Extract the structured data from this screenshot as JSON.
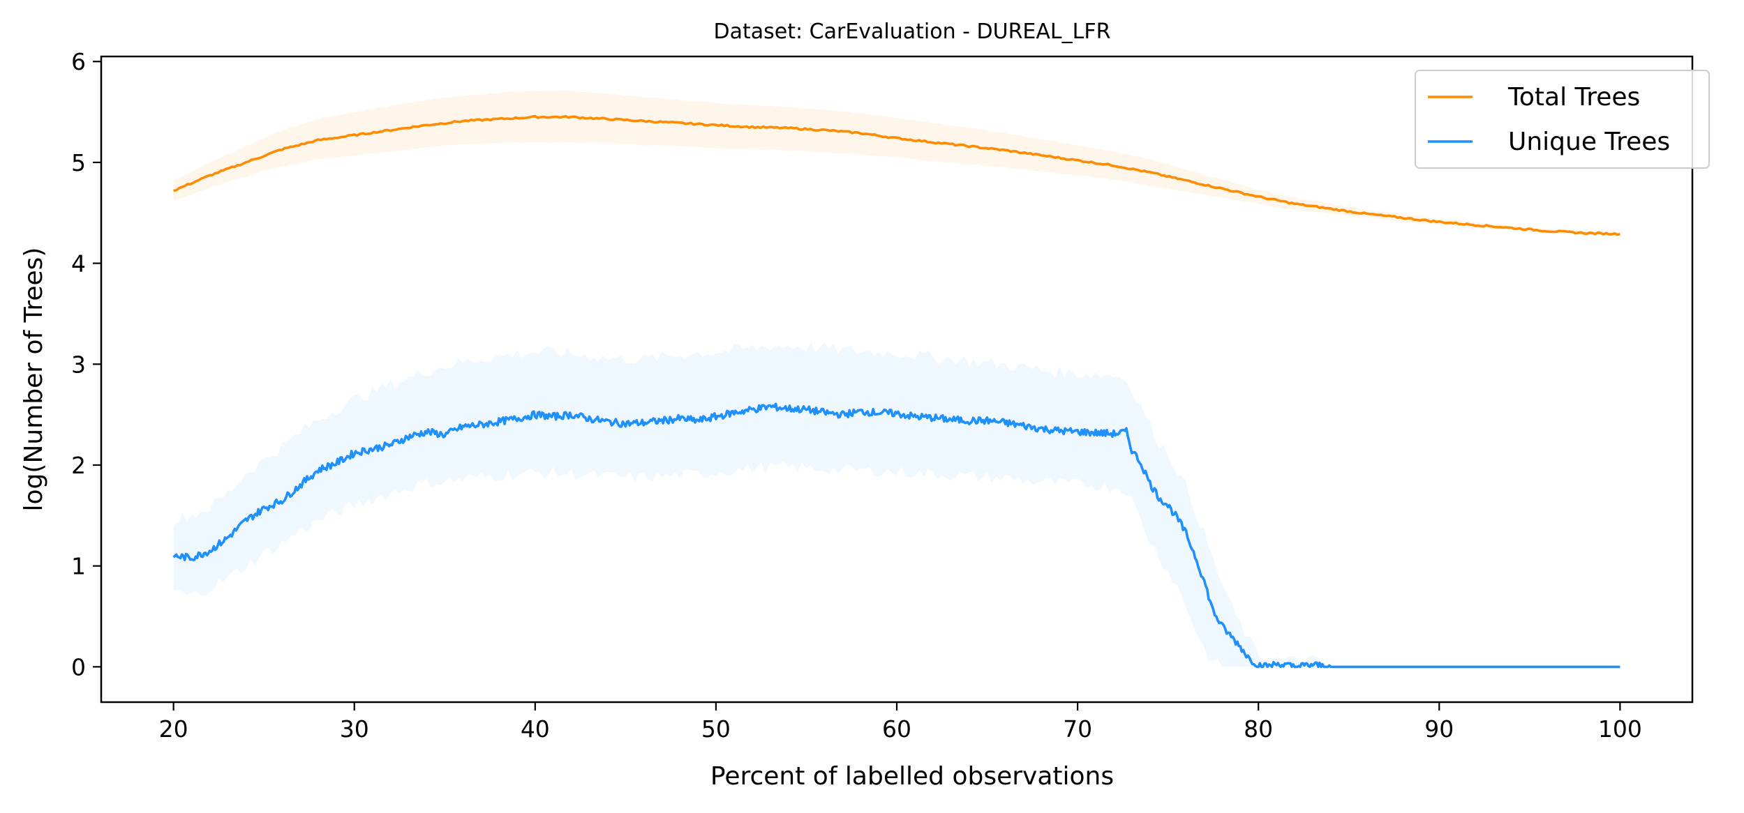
{
  "chart_data": {
    "type": "line",
    "title": "Dataset: CarEvaluation - DUREAL_LFR",
    "xlabel": "Percent of labelled observations",
    "ylabel": "log(Number of Trees)",
    "xlim": [
      16,
      104
    ],
    "ylim": [
      -0.35,
      6.05
    ],
    "xticks": [
      20,
      30,
      40,
      50,
      60,
      70,
      80,
      90,
      100
    ],
    "yticks": [
      0,
      1,
      2,
      3,
      4,
      5,
      6
    ],
    "grid": false,
    "legend_position": "top-right",
    "series": [
      {
        "name": "Total Trees",
        "color": "#ff8c00",
        "x": [
          20,
          22,
          24,
          26,
          28,
          30,
          32,
          34,
          36,
          38,
          40,
          42,
          44,
          46,
          48,
          50,
          52,
          54,
          56,
          58,
          60,
          62,
          64,
          66,
          68,
          70,
          72,
          74,
          76,
          78,
          80,
          82,
          84,
          86,
          88,
          90,
          92,
          94,
          96,
          98,
          100
        ],
        "y": [
          4.72,
          4.87,
          5.0,
          5.13,
          5.22,
          5.27,
          5.32,
          5.37,
          5.41,
          5.43,
          5.45,
          5.45,
          5.43,
          5.41,
          5.39,
          5.37,
          5.35,
          5.34,
          5.32,
          5.29,
          5.24,
          5.2,
          5.16,
          5.12,
          5.07,
          5.02,
          4.97,
          4.9,
          4.82,
          4.74,
          4.66,
          4.59,
          4.54,
          4.49,
          4.45,
          4.41,
          4.38,
          4.35,
          4.32,
          4.3,
          4.29
        ],
        "lower": [
          4.62,
          4.75,
          4.86,
          4.96,
          5.03,
          5.07,
          5.11,
          5.15,
          5.18,
          5.19,
          5.2,
          5.2,
          5.19,
          5.17,
          5.16,
          5.14,
          5.13,
          5.12,
          5.1,
          5.08,
          5.05,
          5.01,
          4.98,
          4.95,
          4.91,
          4.87,
          4.83,
          4.77,
          4.71,
          4.65,
          4.59,
          4.53,
          4.49,
          4.45,
          4.41,
          4.38,
          4.35,
          4.33,
          4.3,
          4.28,
          4.27
        ],
        "upper": [
          4.82,
          5.0,
          5.16,
          5.32,
          5.43,
          5.5,
          5.56,
          5.62,
          5.66,
          5.69,
          5.71,
          5.71,
          5.68,
          5.65,
          5.62,
          5.59,
          5.57,
          5.55,
          5.52,
          5.49,
          5.44,
          5.39,
          5.34,
          5.29,
          5.23,
          5.17,
          5.11,
          5.03,
          4.93,
          4.83,
          4.73,
          4.65,
          4.59,
          4.53,
          4.49,
          4.44,
          4.41,
          4.37,
          4.34,
          4.32,
          4.31
        ]
      },
      {
        "name": "Unique Trees",
        "color": "#1e90ff",
        "x": [
          20,
          21,
          22,
          23,
          24,
          25,
          26,
          27,
          28,
          29,
          30,
          31,
          32,
          33,
          34,
          35,
          36,
          37,
          38,
          39,
          40,
          41,
          42,
          43,
          44,
          45,
          46,
          47,
          48,
          49,
          50,
          51,
          52,
          53,
          54,
          55,
          56,
          57,
          58,
          59,
          60,
          61,
          62,
          63,
          64,
          65,
          66,
          67,
          68,
          69,
          70,
          71,
          72,
          72.7,
          73,
          73.5,
          74,
          74.5,
          75,
          75.5,
          76,
          76.5,
          77,
          77.5,
          78,
          78.5,
          79,
          79.5,
          80,
          80.5,
          81,
          82,
          83,
          84,
          90,
          100
        ],
        "y": [
          1.1,
          1.08,
          1.15,
          1.28,
          1.45,
          1.57,
          1.65,
          1.8,
          1.95,
          2.02,
          2.12,
          2.16,
          2.2,
          2.28,
          2.33,
          2.3,
          2.38,
          2.4,
          2.43,
          2.46,
          2.5,
          2.48,
          2.5,
          2.46,
          2.43,
          2.41,
          2.42,
          2.44,
          2.46,
          2.44,
          2.48,
          2.52,
          2.55,
          2.58,
          2.56,
          2.55,
          2.52,
          2.5,
          2.53,
          2.52,
          2.51,
          2.48,
          2.47,
          2.45,
          2.44,
          2.44,
          2.42,
          2.39,
          2.36,
          2.34,
          2.33,
          2.32,
          2.31,
          2.33,
          2.15,
          2.02,
          1.82,
          1.68,
          1.6,
          1.48,
          1.32,
          1.1,
          0.85,
          0.55,
          0.4,
          0.3,
          0.2,
          0.08,
          0.02,
          0.0,
          0.03,
          0.0,
          0.02,
          0.0,
          0.0,
          0.0
        ],
        "lower": [
          0.75,
          0.7,
          0.78,
          0.88,
          1.0,
          1.12,
          1.22,
          1.35,
          1.45,
          1.53,
          1.6,
          1.66,
          1.72,
          1.78,
          1.82,
          1.84,
          1.86,
          1.88,
          1.9,
          1.91,
          1.92,
          1.92,
          1.91,
          1.9,
          1.89,
          1.88,
          1.88,
          1.89,
          1.9,
          1.91,
          1.93,
          1.95,
          1.97,
          1.98,
          1.98,
          1.97,
          1.96,
          1.95,
          1.95,
          1.94,
          1.93,
          1.92,
          1.91,
          1.9,
          1.89,
          1.88,
          1.87,
          1.85,
          1.83,
          1.82,
          1.81,
          1.8,
          1.78,
          1.76,
          1.65,
          1.45,
          1.25,
          1.1,
          0.95,
          0.8,
          0.6,
          0.38,
          0.18,
          0.04,
          0.0,
          0.0,
          0.0,
          0.0,
          0.0,
          0.0,
          0.0,
          0.0,
          0.0,
          0.0,
          0.0,
          0.0
        ],
        "upper": [
          1.45,
          1.5,
          1.58,
          1.72,
          1.92,
          2.05,
          2.18,
          2.32,
          2.45,
          2.55,
          2.65,
          2.72,
          2.8,
          2.86,
          2.93,
          2.98,
          3.02,
          3.05,
          3.08,
          3.1,
          3.12,
          3.12,
          3.1,
          3.08,
          3.06,
          3.05,
          3.05,
          3.07,
          3.09,
          3.11,
          3.12,
          3.14,
          3.16,
          3.18,
          3.18,
          3.17,
          3.16,
          3.14,
          3.13,
          3.12,
          3.11,
          3.09,
          3.07,
          3.05,
          3.03,
          3.01,
          2.99,
          2.97,
          2.94,
          2.92,
          2.91,
          2.9,
          2.89,
          2.88,
          2.7,
          2.58,
          2.4,
          2.22,
          2.12,
          1.95,
          1.78,
          1.55,
          1.32,
          1.05,
          0.82,
          0.6,
          0.42,
          0.25,
          0.12,
          0.08,
          0.07,
          0.06,
          0.07,
          0.0,
          0.0,
          0.0
        ]
      }
    ]
  }
}
